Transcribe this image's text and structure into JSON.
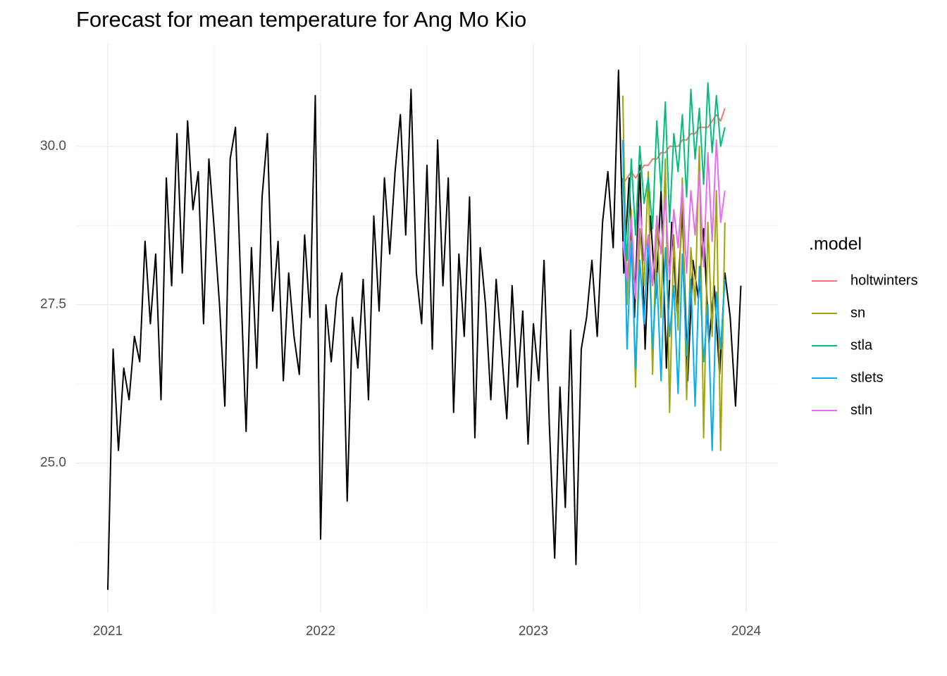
{
  "chart_data": {
    "type": "line",
    "title": "Forecast for mean temperature for Ang Mo Kio",
    "legend_title": ".model",
    "legend_position": "right",
    "grid": true,
    "xlim": [
      2020.851,
      2024.149
    ],
    "xticks": [
      2021,
      2022,
      2023,
      2024
    ],
    "xticks_minor": [
      2021.5,
      2022.5,
      2023.5
    ],
    "ylim": [
      22.64,
      31.62
    ],
    "yticks": [
      {
        "value": 25,
        "label": "25.0"
      },
      27.5,
      {
        "value": 30,
        "label": "30.0"
      }
    ],
    "yticks_minor": [
      23.75,
      26.25,
      28.75
    ],
    "series": [
      {
        "color": "#000000",
        "x": [
          2021.0,
          2021.025,
          2021.05,
          2021.075,
          2021.1,
          2021.125,
          2021.15,
          2021.175,
          2021.2,
          2021.225,
          2021.25,
          2021.275,
          2021.3,
          2021.325,
          2021.35,
          2021.375,
          2021.4,
          2021.425,
          2021.45,
          2021.475,
          2021.5,
          2021.525,
          2021.55,
          2021.575,
          2021.6,
          2021.625,
          2021.65,
          2021.675,
          2021.7,
          2021.725,
          2021.75,
          2021.775,
          2021.8,
          2021.825,
          2021.85,
          2021.875,
          2021.9,
          2021.925,
          2021.95,
          2021.975,
          2022.0,
          2022.025,
          2022.05,
          2022.075,
          2022.1,
          2022.125,
          2022.15,
          2022.175,
          2022.2,
          2022.225,
          2022.25,
          2022.275,
          2022.3,
          2022.325,
          2022.35,
          2022.375,
          2022.4,
          2022.425,
          2022.45,
          2022.475,
          2022.5,
          2022.525,
          2022.55,
          2022.575,
          2022.6,
          2022.625,
          2022.65,
          2022.675,
          2022.7,
          2022.725,
          2022.75,
          2022.775,
          2022.8,
          2022.825,
          2022.85,
          2022.875,
          2022.9,
          2022.925,
          2022.95,
          2022.975,
          2023.0,
          2023.025,
          2023.05,
          2023.075,
          2023.1,
          2023.125,
          2023.15,
          2023.175,
          2023.2,
          2023.225,
          2023.25,
          2023.275,
          2023.3,
          2023.325,
          2023.35,
          2023.375,
          2023.4,
          2023.425,
          2023.45,
          2023.475,
          2023.5,
          2023.525,
          2023.55,
          2023.575,
          2023.6,
          2023.625,
          2023.65,
          2023.675,
          2023.7,
          2023.725,
          2023.75,
          2023.775,
          2023.8,
          2023.825,
          2023.85,
          2023.875,
          2023.9,
          2023.925,
          2023.95,
          2023.975
        ],
        "values": [
          23.0,
          26.8,
          25.2,
          26.5,
          26.0,
          27.0,
          26.6,
          28.5,
          27.2,
          28.3,
          26.0,
          29.5,
          27.8,
          30.2,
          28.0,
          30.4,
          29.0,
          29.6,
          27.2,
          29.8,
          28.7,
          27.5,
          25.9,
          29.8,
          30.3,
          27.8,
          25.5,
          28.4,
          26.5,
          29.2,
          30.2,
          27.4,
          28.5,
          26.3,
          28.0,
          27.0,
          26.4,
          28.6,
          27.3,
          30.8,
          23.8,
          27.5,
          26.6,
          27.6,
          28.0,
          24.4,
          27.3,
          26.5,
          27.9,
          26.0,
          28.9,
          27.4,
          29.5,
          28.3,
          29.6,
          30.5,
          28.6,
          30.9,
          28.0,
          27.2,
          29.7,
          26.8,
          30.1,
          27.8,
          29.5,
          25.8,
          28.3,
          27.0,
          29.2,
          25.4,
          28.4,
          27.5,
          26.0,
          27.9,
          26.8,
          25.7,
          27.8,
          26.2,
          27.4,
          25.3,
          27.2,
          26.3,
          28.2,
          25.6,
          23.5,
          26.2,
          24.3,
          27.1,
          23.4,
          26.8,
          27.3,
          28.2,
          27.0,
          28.8,
          29.6,
          28.4,
          31.2,
          28.0,
          29.5,
          27.3,
          29.7,
          26.8,
          28.9,
          27.6,
          29.3,
          26.5,
          28.8,
          27.4,
          29.0,
          26.3,
          28.2,
          27.6,
          28.7,
          26.9,
          27.8,
          26.4,
          28.0,
          27.3,
          25.9,
          27.8
        ]
      },
      {
        "name": "holtwinters",
        "color": "#F8766D",
        "x": [
          2023.42,
          2023.44,
          2023.46,
          2023.48,
          2023.5,
          2023.52,
          2023.54,
          2023.56,
          2023.58,
          2023.6,
          2023.62,
          2023.64,
          2023.66,
          2023.68,
          2023.7,
          2023.72,
          2023.74,
          2023.76,
          2023.78,
          2023.8,
          2023.82,
          2023.84,
          2023.86,
          2023.88,
          2023.9
        ],
        "values": [
          29.4,
          29.5,
          29.6,
          29.5,
          29.6,
          29.7,
          29.7,
          29.8,
          29.8,
          29.9,
          29.9,
          30.0,
          30.0,
          30.0,
          30.1,
          30.1,
          30.2,
          30.2,
          30.3,
          30.3,
          30.3,
          30.4,
          30.5,
          30.4,
          30.6
        ]
      },
      {
        "name": "sn",
        "color": "#A3A500",
        "x": [
          2023.42,
          2023.44,
          2023.46,
          2023.48,
          2023.5,
          2023.52,
          2023.54,
          2023.56,
          2023.58,
          2023.6,
          2023.62,
          2023.64,
          2023.66,
          2023.68,
          2023.7,
          2023.72,
          2023.74,
          2023.76,
          2023.78,
          2023.8,
          2023.82,
          2023.84,
          2023.86,
          2023.88,
          2023.9
        ],
        "values": [
          30.8,
          27.5,
          29.0,
          26.2,
          28.7,
          27.8,
          29.6,
          26.4,
          28.9,
          27.3,
          29.8,
          25.8,
          28.6,
          27.1,
          29.5,
          26.0,
          28.4,
          27.5,
          30.0,
          25.4,
          28.8,
          27.0,
          29.3,
          25.2,
          28.8
        ]
      },
      {
        "name": "stla",
        "color": "#00BF7D",
        "x": [
          2023.42,
          2023.44,
          2023.46,
          2023.48,
          2023.5,
          2023.52,
          2023.54,
          2023.56,
          2023.58,
          2023.6,
          2023.62,
          2023.64,
          2023.66,
          2023.68,
          2023.7,
          2023.72,
          2023.74,
          2023.76,
          2023.78,
          2023.8,
          2023.82,
          2023.84,
          2023.86,
          2023.88,
          2023.9
        ],
        "values": [
          29.5,
          28.2,
          29.8,
          28.6,
          30.0,
          29.1,
          29.5,
          28.7,
          30.4,
          29.3,
          30.7,
          28.8,
          30.2,
          29.6,
          30.5,
          29.2,
          30.9,
          29.8,
          30.6,
          29.4,
          31.0,
          29.9,
          30.8,
          30.0,
          30.3
        ]
      },
      {
        "name": "stlets",
        "color": "#00B0F6",
        "x": [
          2023.42,
          2023.44,
          2023.46,
          2023.48,
          2023.5,
          2023.52,
          2023.54,
          2023.56,
          2023.58,
          2023.6,
          2023.62,
          2023.64,
          2023.66,
          2023.68,
          2023.7,
          2023.72,
          2023.74,
          2023.76,
          2023.78,
          2023.8,
          2023.82,
          2023.84,
          2023.86,
          2023.88,
          2023.9
        ],
        "values": [
          30.1,
          26.8,
          28.5,
          26.5,
          28.2,
          27.2,
          28.6,
          26.8,
          28.0,
          26.3,
          28.4,
          27.0,
          27.8,
          26.1,
          28.3,
          26.7,
          27.9,
          25.9,
          28.1,
          26.6,
          27.5,
          25.2,
          27.7,
          26.8,
          27.9
        ]
      },
      {
        "name": "stln",
        "color": "#E76BF3",
        "x": [
          2023.42,
          2023.44,
          2023.46,
          2023.48,
          2023.5,
          2023.52,
          2023.54,
          2023.56,
          2023.58,
          2023.6,
          2023.62,
          2023.64,
          2023.66,
          2023.68,
          2023.7,
          2023.72,
          2023.74,
          2023.76,
          2023.78,
          2023.8,
          2023.82,
          2023.84,
          2023.86,
          2023.88,
          2023.9
        ],
        "values": [
          28.5,
          27.9,
          28.9,
          27.6,
          29.1,
          28.2,
          28.6,
          27.8,
          28.9,
          28.3,
          29.2,
          27.9,
          29.0,
          28.4,
          29.4,
          28.0,
          29.3,
          28.6,
          29.6,
          28.1,
          29.9,
          28.5,
          30.1,
          28.8,
          29.3
        ]
      }
    ]
  }
}
